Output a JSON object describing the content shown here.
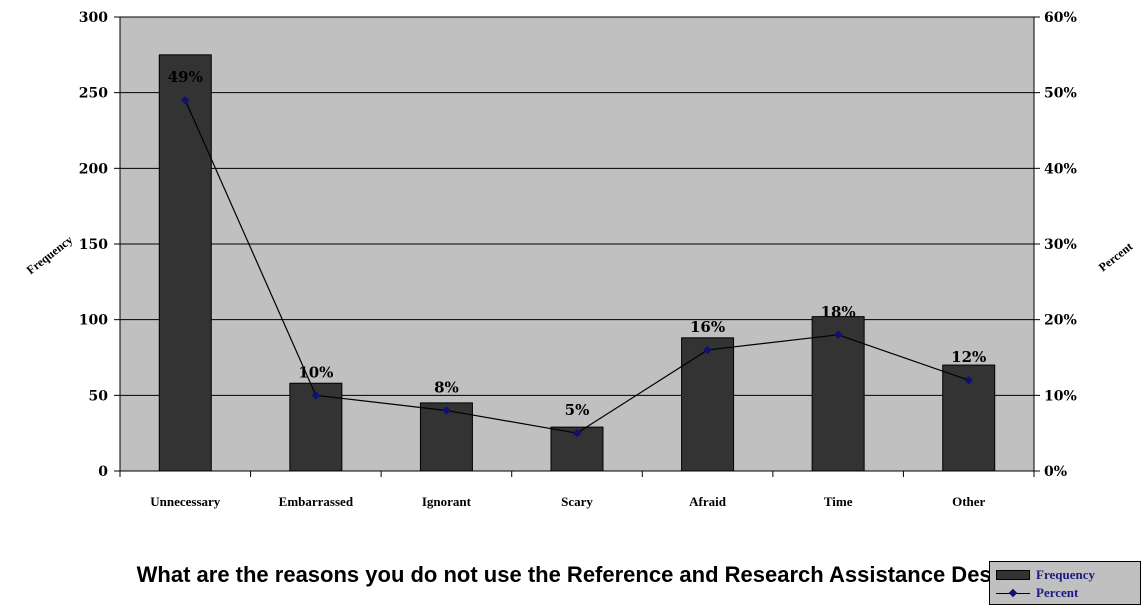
{
  "chart_data": {
    "type": "bar",
    "title": "What are the reasons you do not use the Reference and Research Assistance Desk?",
    "categories": [
      "Unnecessary",
      "Embarrassed",
      "Ignorant",
      "Scary",
      "Afraid",
      "Time",
      "Other"
    ],
    "series": [
      {
        "name": "Frequency",
        "type": "bar",
        "axis": "left",
        "values": [
          275,
          58,
          45,
          29,
          88,
          102,
          70
        ]
      },
      {
        "name": "Percent",
        "type": "line",
        "axis": "right",
        "values": [
          49,
          10,
          8,
          5,
          16,
          18,
          12
        ],
        "labels": [
          "49%",
          "10%",
          "8%",
          "5%",
          "16%",
          "18%",
          "12%"
        ]
      }
    ],
    "ylabel": "Frequency",
    "y2label": "Percent",
    "ylim": [
      0,
      300
    ],
    "y2lim": [
      0,
      60
    ],
    "yticks": [
      "0",
      "50",
      "100",
      "150",
      "200",
      "250",
      "300"
    ],
    "y2ticks": [
      "0%",
      "10%",
      "20%",
      "30%",
      "40%",
      "50%",
      "60%"
    ],
    "grid": true,
    "legend_position": "bottom-right",
    "colors": {
      "plot_bg": "#c0c0c0",
      "bar": "#333333",
      "line": "#000000",
      "marker": "#10106e"
    }
  },
  "legend": {
    "bar_label": "Frequency",
    "line_label": "Percent"
  }
}
